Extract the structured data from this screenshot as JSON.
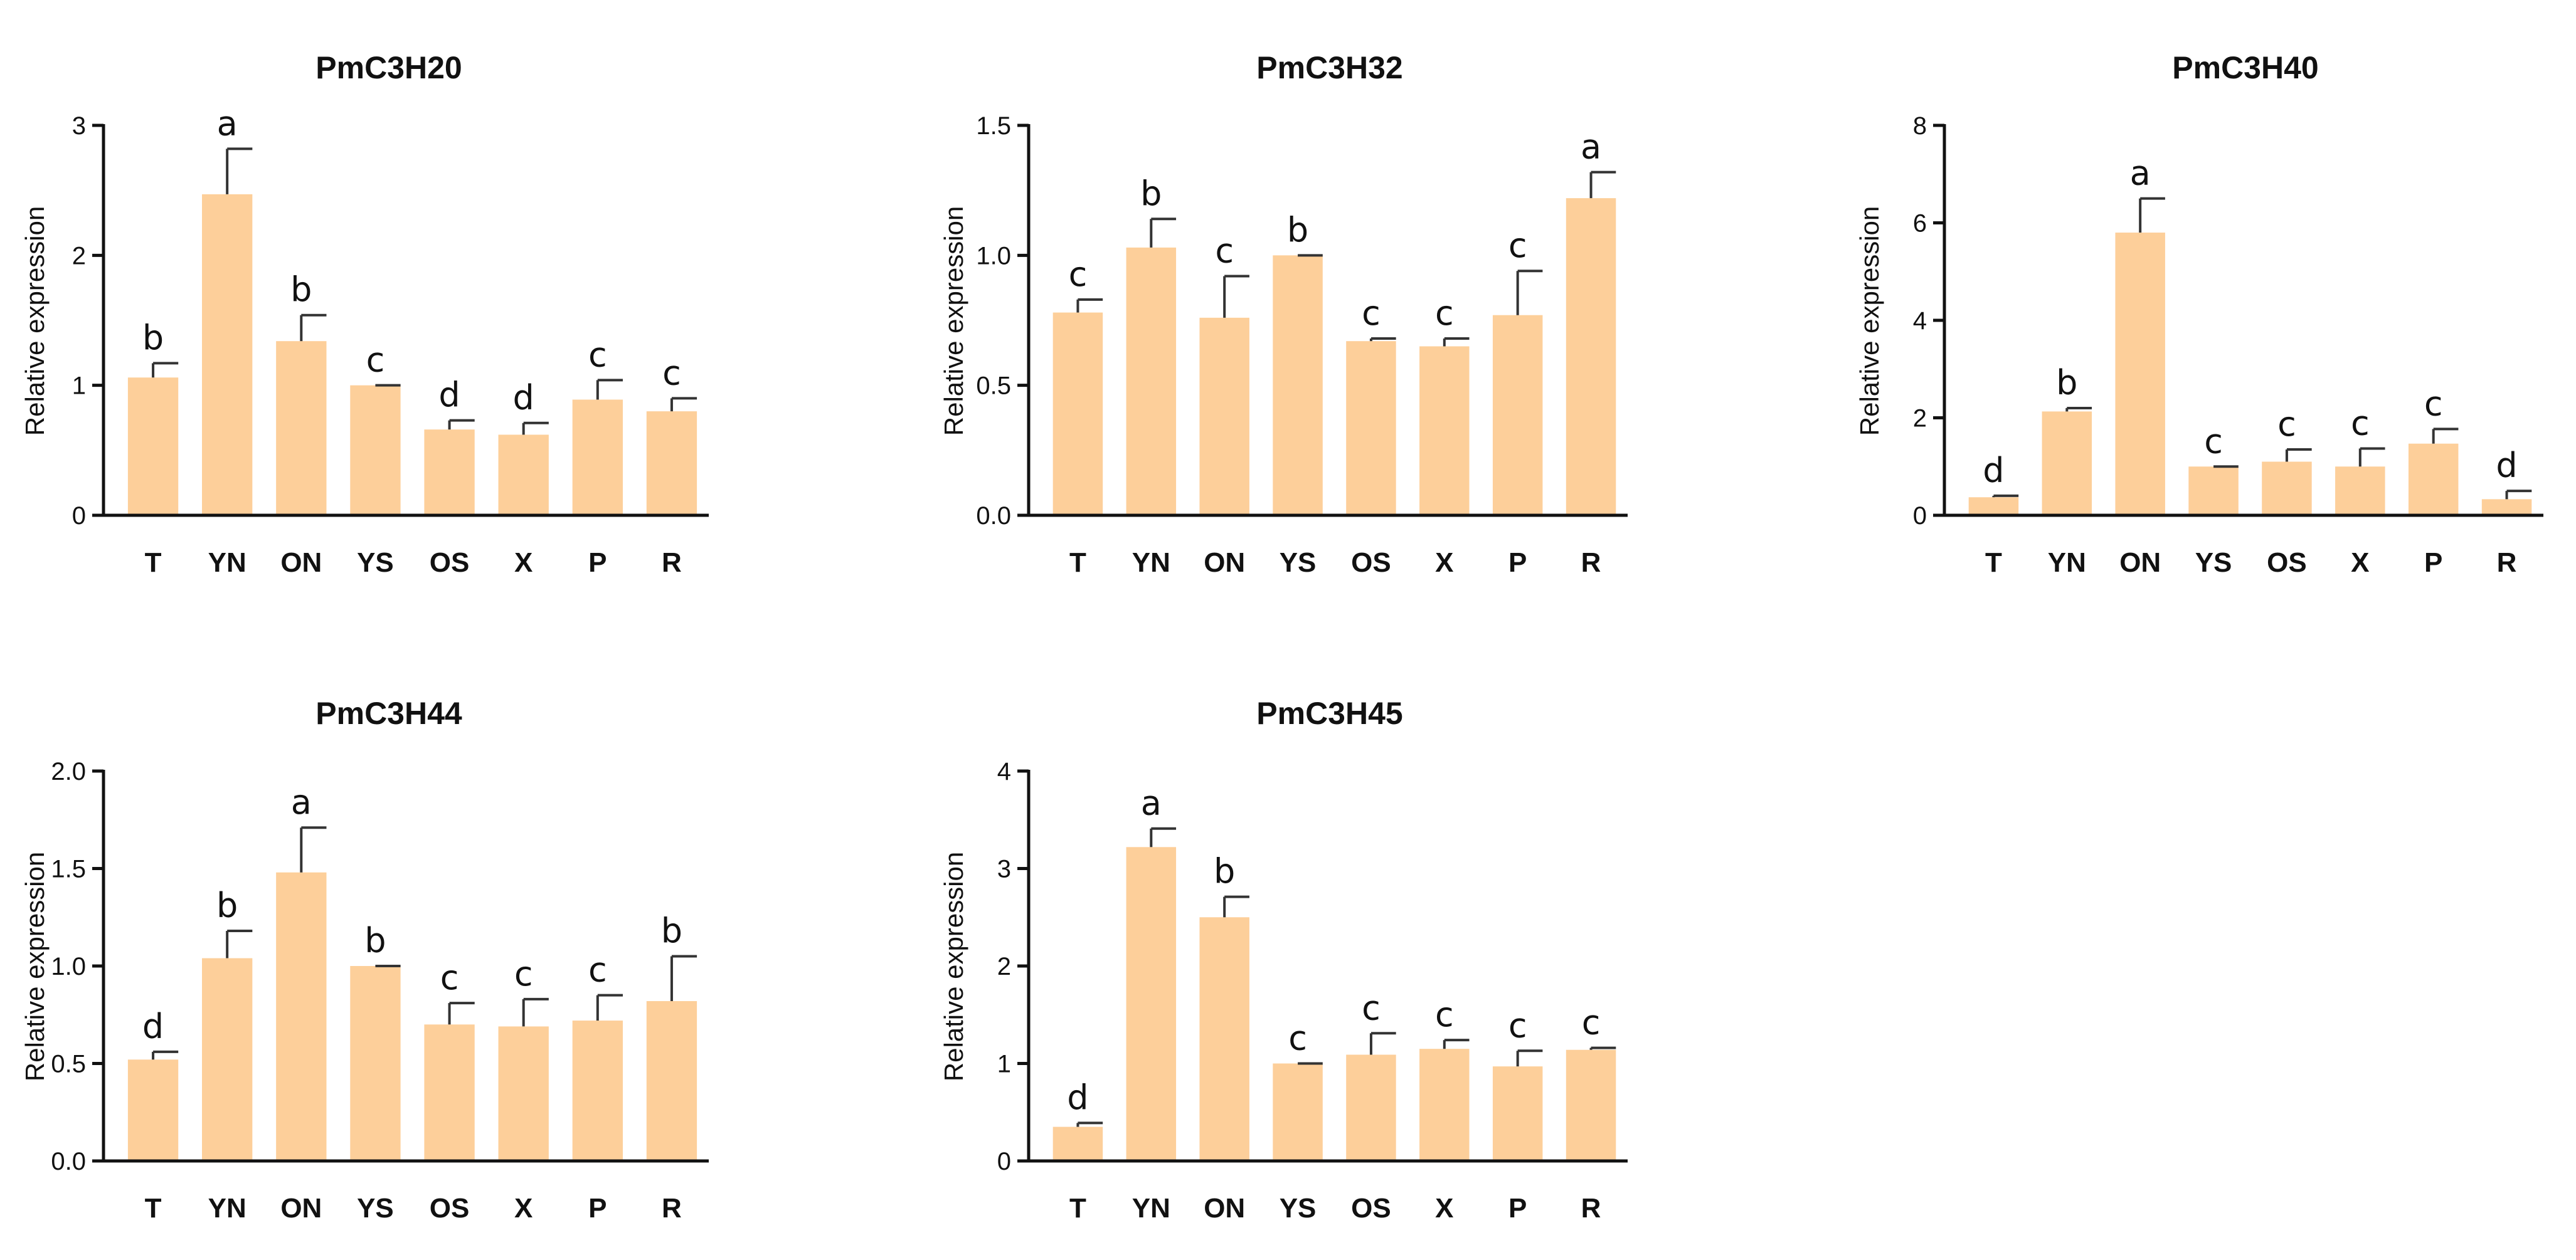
{
  "colors": {
    "bar": "#FDCF9A",
    "axis": "#111111"
  },
  "chart_data": [
    {
      "type": "bar",
      "title": "PmC3H20",
      "ylabel": "Relative expression",
      "categories": [
        "T",
        "YN",
        "ON",
        "YS",
        "OS",
        "X",
        "P",
        "R"
      ],
      "values": [
        1.06,
        2.47,
        1.34,
        1.0,
        0.66,
        0.62,
        0.89,
        0.8
      ],
      "errors": [
        0.11,
        0.35,
        0.2,
        0.0,
        0.07,
        0.09,
        0.15,
        0.1
      ],
      "letters": [
        "b",
        "a",
        "b",
        "c",
        "d",
        "d",
        "c",
        "c"
      ],
      "ylim": [
        0,
        3
      ],
      "yticks": [
        "0",
        "1",
        "2",
        "3"
      ]
    },
    {
      "type": "bar",
      "title": "PmC3H32",
      "ylabel": "Relative expression",
      "categories": [
        "T",
        "YN",
        "ON",
        "YS",
        "OS",
        "X",
        "P",
        "R"
      ],
      "values": [
        0.78,
        1.03,
        0.76,
        1.0,
        0.67,
        0.65,
        0.77,
        1.22
      ],
      "errors": [
        0.05,
        0.11,
        0.16,
        0.0,
        0.01,
        0.03,
        0.17,
        0.1
      ],
      "letters": [
        "c",
        "b",
        "c",
        "b",
        "c",
        "c",
        "c",
        "a"
      ],
      "ylim": [
        0,
        1.5
      ],
      "yticks": [
        "0.0",
        "0.5",
        "1.0",
        "1.5"
      ]
    },
    {
      "type": "bar",
      "title": "PmC3H40",
      "ylabel": "Relative expression",
      "categories": [
        "T",
        "YN",
        "ON",
        "YS",
        "OS",
        "X",
        "P",
        "R"
      ],
      "values": [
        0.37,
        2.13,
        5.8,
        1.0,
        1.1,
        1.0,
        1.47,
        0.33
      ],
      "errors": [
        0.03,
        0.07,
        0.7,
        0.0,
        0.25,
        0.37,
        0.3,
        0.17
      ],
      "letters": [
        "d",
        "b",
        "a",
        "c",
        "c",
        "c",
        "c",
        "d"
      ],
      "ylim": [
        0,
        8
      ],
      "yticks": [
        "0",
        "2",
        "4",
        "6",
        "8"
      ]
    },
    {
      "type": "bar",
      "title": "PmC3H44",
      "ylabel": "Relative expression",
      "categories": [
        "T",
        "YN",
        "ON",
        "YS",
        "OS",
        "X",
        "P",
        "R"
      ],
      "values": [
        0.52,
        1.04,
        1.48,
        1.0,
        0.7,
        0.69,
        0.72,
        0.82
      ],
      "errors": [
        0.04,
        0.14,
        0.23,
        0.0,
        0.11,
        0.14,
        0.13,
        0.23
      ],
      "letters": [
        "d",
        "b",
        "a",
        "b",
        "c",
        "c",
        "c",
        "b"
      ],
      "ylim": [
        0,
        2
      ],
      "yticks": [
        "0.0",
        "0.5",
        "1.0",
        "1.5",
        "2.0"
      ]
    },
    {
      "type": "bar",
      "title": "PmC3H45",
      "ylabel": "Relative expression",
      "categories": [
        "T",
        "YN",
        "ON",
        "YS",
        "OS",
        "X",
        "P",
        "R"
      ],
      "values": [
        0.35,
        3.22,
        2.5,
        1.0,
        1.09,
        1.15,
        0.97,
        1.14
      ],
      "errors": [
        0.04,
        0.19,
        0.21,
        0.0,
        0.22,
        0.09,
        0.16,
        0.02
      ],
      "letters": [
        "d",
        "a",
        "b",
        "c",
        "c",
        "c",
        "c",
        "c"
      ],
      "ylim": [
        0,
        4
      ],
      "yticks": [
        "0",
        "1",
        "2",
        "3",
        "4"
      ]
    }
  ]
}
